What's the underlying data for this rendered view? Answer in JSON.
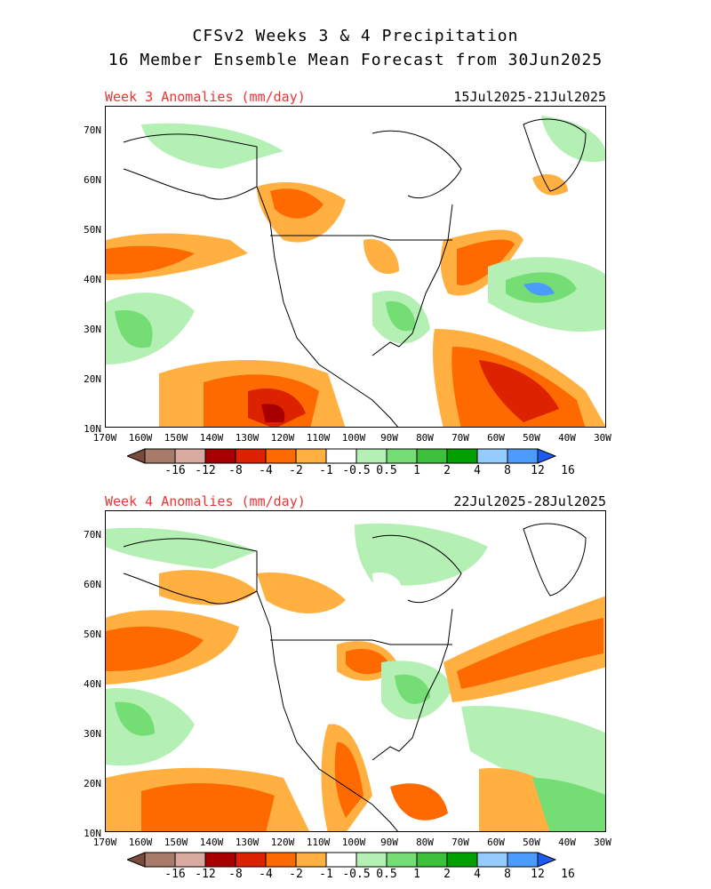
{
  "header": {
    "title_line1": "CFSv2 Weeks 3 & 4 Precipitation",
    "title_line2": "16 Member Ensemble Mean Forecast from 30Jun2025"
  },
  "panels": [
    {
      "label": "Week 3 Anomalies (mm/day)",
      "date_range": "15Jul2025-21Jul2025"
    },
    {
      "label": "Week 4 Anomalies (mm/day)",
      "date_range": "22Jul2025-28Jul2025"
    }
  ],
  "lat_ticks": [
    "70N",
    "60N",
    "50N",
    "40N",
    "30N",
    "20N",
    "10N"
  ],
  "lon_ticks": [
    "170W",
    "160W",
    "150W",
    "140W",
    "130W",
    "120W",
    "110W",
    "100W",
    "90W",
    "80W",
    "70W",
    "60W",
    "50W",
    "40W",
    "30W"
  ],
  "colorbar": {
    "labels": [
      "-16",
      "-12",
      "-8",
      "-4",
      "-2",
      "-1",
      "-0.5",
      "0.5",
      "1",
      "2",
      "4",
      "8",
      "12",
      "16"
    ],
    "colors": [
      "#7a4a3a",
      "#a87a6a",
      "#d9aaa0",
      "#a80000",
      "#dd2200",
      "#ff6a00",
      "#ffb040",
      "#ffffff",
      "#b4f0b4",
      "#74dd74",
      "#3cc03c",
      "#00a000",
      "#94ccff",
      "#4c9cff",
      "#1c5cf0"
    ]
  },
  "colors": {
    "dry_light": "#ffb040",
    "dry_mid": "#ff6a00",
    "dry_strong": "#dd2200",
    "dry_extreme": "#a80000",
    "wet_light": "#b4f0b4",
    "wet_mid": "#74dd74",
    "wet_strong": "#3cc03c",
    "wet_blue": "#4c9cff",
    "title_red": "#ee3333"
  }
}
